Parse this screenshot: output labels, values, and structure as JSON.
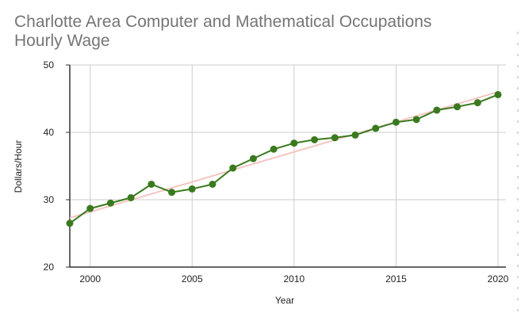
{
  "chart_data": {
    "type": "line",
    "title": "Charlotte Area Computer and Mathematical Occupations\nHourly Wage",
    "xlabel": "Year",
    "ylabel": "Dollars/Hour",
    "xlim": [
      1999,
      2020
    ],
    "ylim": [
      20,
      50
    ],
    "xticks": [
      2000,
      2005,
      2010,
      2015,
      2020
    ],
    "yticks": [
      20,
      30,
      40,
      50
    ],
    "grid": true,
    "legend": "none",
    "x": [
      1999,
      2000,
      2001,
      2002,
      2003,
      2004,
      2005,
      2006,
      2007,
      2008,
      2009,
      2010,
      2011,
      2012,
      2013,
      2014,
      2015,
      2016,
      2017,
      2018,
      2019,
      2020
    ],
    "series": [
      {
        "values": [
          26.5,
          28.7,
          29.5,
          30.3,
          32.3,
          31.1,
          31.6,
          32.3,
          34.7,
          36.1,
          37.5,
          38.4,
          38.9,
          39.2,
          39.6,
          40.6,
          41.5,
          41.9,
          43.3,
          43.8,
          44.4,
          45.6
        ],
        "color": "#3a7a1e",
        "trendline": {
          "start": 27.3,
          "end": 46.0,
          "color": "#f4c7c3"
        }
      }
    ]
  }
}
